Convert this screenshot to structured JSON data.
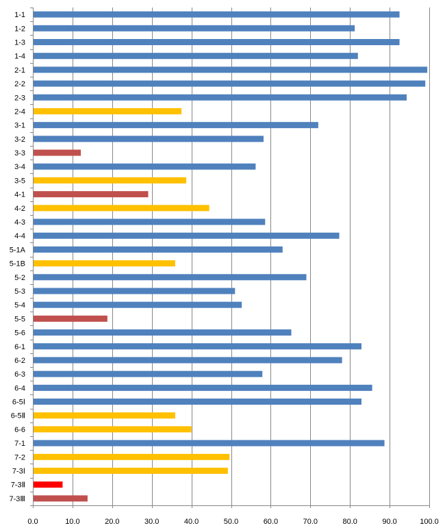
{
  "chart_data": {
    "type": "bar",
    "orientation": "horizontal",
    "grid": true,
    "legend": "none",
    "xlim": [
      0,
      100
    ],
    "x_ticks": [
      "0.0",
      "10.0",
      "20.0",
      "30.0",
      "40.0",
      "50.0",
      "60.0",
      "70.0",
      "80.0",
      "90.0",
      "100.0"
    ],
    "categories": [
      "1-1",
      "1-2",
      "1-3",
      "1-4",
      "2-1",
      "2-2",
      "2-3",
      "2-4",
      "3-1",
      "3-2",
      "3-3",
      "3-4",
      "3-5",
      "4-1",
      "4-2",
      "4-3",
      "4-4",
      "5-1A",
      "5-1B",
      "5-2",
      "5-3",
      "5-4",
      "5-5",
      "5-6",
      "6-1",
      "6-2",
      "6-3",
      "6-4",
      "6-5Ⅰ",
      "6-5Ⅱ",
      "6-6",
      "7-1",
      "7-2",
      "7-3Ⅰ",
      "7-3Ⅱ",
      "7-3Ⅲ"
    ],
    "values": [
      92.5,
      81.2,
      92.5,
      82.0,
      99.5,
      99.0,
      94.3,
      37.5,
      72.0,
      58.2,
      12.1,
      56.2,
      38.7,
      29.1,
      44.5,
      58.6,
      77.3,
      63.0,
      35.9,
      69.0,
      51.0,
      52.7,
      18.8,
      65.2,
      82.9,
      78.0,
      57.9,
      85.6,
      82.9,
      35.9,
      40.0,
      88.7,
      49.6,
      49.2,
      7.5,
      13.8
    ],
    "bar_colors": [
      "#4f81bd",
      "#4f81bd",
      "#4f81bd",
      "#4f81bd",
      "#4f81bd",
      "#4f81bd",
      "#4f81bd",
      "#ffc000",
      "#4f81bd",
      "#4f81bd",
      "#c0504d",
      "#4f81bd",
      "#ffc000",
      "#c0504d",
      "#ffc000",
      "#4f81bd",
      "#4f81bd",
      "#4f81bd",
      "#ffc000",
      "#4f81bd",
      "#4f81bd",
      "#4f81bd",
      "#c0504d",
      "#4f81bd",
      "#4f81bd",
      "#4f81bd",
      "#4f81bd",
      "#4f81bd",
      "#4f81bd",
      "#ffc000",
      "#ffc000",
      "#4f81bd",
      "#ffc000",
      "#ffc000",
      "#ff0000",
      "#c0504d"
    ],
    "colors": {
      "blue": "#4f81bd",
      "yellow": "#ffc000",
      "dark_red": "#c0504d",
      "red": "#ff0000",
      "grid": "#868686"
    }
  }
}
